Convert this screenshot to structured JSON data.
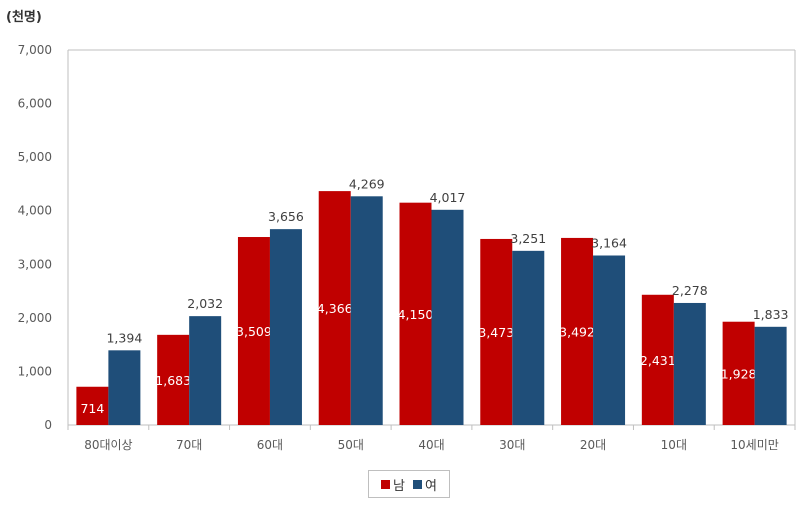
{
  "chart_data": {
    "type": "bar",
    "unit_label": "(천명)",
    "categories": [
      "80대이상",
      "70대",
      "60대",
      "50대",
      "40대",
      "30대",
      "20대",
      "10대",
      "10세미만"
    ],
    "series": [
      {
        "name": "남",
        "color": "#c00000",
        "label_color": "#ffffff",
        "values": [
          714,
          1683,
          3509,
          4366,
          4150,
          3473,
          3492,
          2431,
          1928
        ]
      },
      {
        "name": "여",
        "color": "#1f4e79",
        "label_color": "#404040",
        "values": [
          1394,
          2032,
          3656,
          4269,
          4017,
          3251,
          3164,
          2278,
          1833
        ]
      }
    ],
    "ylim": [
      0,
      7000
    ],
    "yticks": [
      "0",
      "1,000",
      "2,000",
      "3,000",
      "4,000",
      "5,000",
      "6,000",
      "7,000"
    ],
    "grid": false,
    "legend_position": "bottom"
  }
}
